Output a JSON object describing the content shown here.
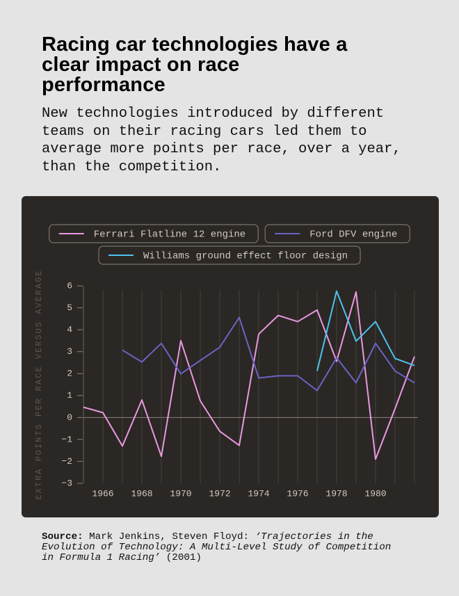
{
  "chart_data": {
    "type": "line",
    "title": "Racing car technologies have a clear impact on race performance",
    "subtitle": "New technologies introduced by different teams on their racing cars led them to average more points per race, over a year, than the competition.",
    "y_label": "EXTRA POINTS PER RACE VERSUS AVERAGE",
    "x": [
      1965,
      1966,
      1967,
      1968,
      1969,
      1970,
      1971,
      1972,
      1973,
      1974,
      1975,
      1976,
      1977,
      1978,
      1979,
      1980,
      1981,
      1982
    ],
    "series": [
      {
        "name": "Ferrari Flatline 12 engine",
        "color": "#e89ae0",
        "values": [
          0.47,
          0.22,
          -1.3,
          0.8,
          -1.77,
          3.5,
          0.76,
          -0.63,
          -1.27,
          3.8,
          4.65,
          4.37,
          4.9,
          2.56,
          5.72,
          -1.9,
          0.4,
          2.78
        ]
      },
      {
        "name": "Ford DFV engine",
        "color": "#6a64c4",
        "values": [
          null,
          null,
          3.07,
          2.53,
          3.38,
          1.99,
          2.6,
          3.2,
          4.56,
          1.8,
          1.9,
          1.9,
          1.23,
          2.72,
          1.58,
          3.38,
          2.12,
          1.58
        ]
      },
      {
        "name": "Williams ground effect floor design",
        "color": "#4cc3f0",
        "values": [
          null,
          null,
          null,
          null,
          null,
          null,
          null,
          null,
          null,
          null,
          null,
          null,
          2.12,
          5.76,
          3.48,
          4.37,
          2.69,
          2.37
        ]
      }
    ],
    "xlim": [
      1965,
      1982
    ],
    "xticks": [
      1966,
      1968,
      1970,
      1972,
      1974,
      1976,
      1978,
      1980
    ],
    "ylim": [
      -3,
      6
    ],
    "yticks": [
      {
        "value": -3,
        "label": "−3"
      },
      {
        "value": -2,
        "label": "−2"
      },
      {
        "value": -1,
        "label": "−1"
      },
      0,
      1,
      2,
      3,
      4,
      5,
      6
    ],
    "grid": true
  },
  "source": {
    "label": "Source:",
    "authors": "Mark Jenkins, Steven Floyd:",
    "work": "‘Trajectories in the Evolution of Technology: A Multi-Level Study of Competition in Formula 1 Racing’",
    "year": "(2001)"
  }
}
